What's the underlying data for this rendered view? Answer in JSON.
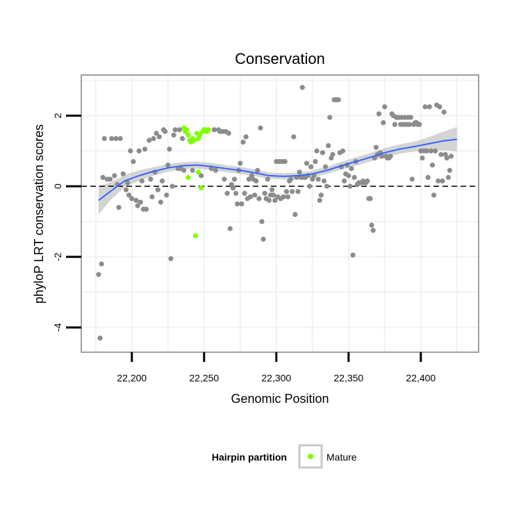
{
  "chart_data": {
    "type": "scatter",
    "title": "Conservation",
    "xlabel": "Genomic Position",
    "ylabel": "phyloP LRT conservation scores",
    "xlim": [
      22165,
      22440
    ],
    "ylim": [
      -4.7,
      3.15
    ],
    "x_ticks": [
      22200,
      22250,
      22300,
      22350,
      22400
    ],
    "x_tick_labels": [
      "22,200",
      "22,250",
      "22,300",
      "22,350",
      "22,400"
    ],
    "y_ticks": [
      -4,
      -2,
      0,
      2
    ],
    "y_tick_labels": [
      "-4",
      "-2",
      "0",
      "2"
    ],
    "grid": true,
    "reference_line": {
      "y": 0,
      "style": "dashed"
    },
    "legend": {
      "title": "Hairpin partition",
      "position": "bottom",
      "entries": [
        {
          "label": "Mature",
          "color": "#7fff00"
        }
      ]
    },
    "colors": {
      "other_points": "#8c8c8c",
      "mature_points": "#7fff00",
      "smooth_line": "#3366ff",
      "smooth_band": "#cccccc"
    },
    "series": [
      {
        "values": [
          [
            22177,
            -2.5
          ],
          [
            22178,
            -4.3
          ],
          [
            22179,
            -2.2
          ],
          [
            22180,
            0.25
          ],
          [
            22181,
            1.35
          ],
          [
            22183,
            0.2
          ],
          [
            22185,
            0.2
          ],
          [
            22186,
            1.35
          ],
          [
            22188,
            0.3
          ],
          [
            22189,
            1.35
          ],
          [
            22190,
            0.05
          ],
          [
            22191,
            -0.6
          ],
          [
            22192,
            1.35
          ],
          [
            22194,
            0.35
          ],
          [
            22196,
            -0.1
          ],
          [
            22197,
            0.1
          ],
          [
            22198,
            -0.25
          ],
          [
            22199,
            1.0
          ],
          [
            22200,
            -0.35
          ],
          [
            22201,
            0.7
          ],
          [
            22203,
            -0.4
          ],
          [
            22204,
            -0.55
          ],
          [
            22205,
            1.0
          ],
          [
            22206,
            -0.45
          ],
          [
            22207,
            0.15
          ],
          [
            22208,
            -0.65
          ],
          [
            22209,
            1.05
          ],
          [
            22210,
            -0.65
          ],
          [
            22212,
            1.3
          ],
          [
            22213,
            0.2
          ],
          [
            22214,
            -0.3
          ],
          [
            22215,
            1.35
          ],
          [
            22216,
            0.4
          ],
          [
            22217,
            1.5
          ],
          [
            22218,
            -0.1
          ],
          [
            22219,
            1.4
          ],
          [
            22220,
            -0.45
          ],
          [
            22221,
            0.15
          ],
          [
            22222,
            1.6
          ],
          [
            22223,
            1.55
          ],
          [
            22224,
            -0.25
          ],
          [
            22225,
            0.6
          ],
          [
            22226,
            1.05
          ],
          [
            22227,
            -2.05
          ],
          [
            22228,
            0.0
          ],
          [
            22229,
            1.45
          ],
          [
            22230,
            1.6
          ],
          [
            22232,
            0.5
          ],
          [
            22233,
            1.6
          ],
          [
            22234,
            0.5
          ],
          [
            22235,
            1.35
          ],
          [
            22236,
            0.45
          ],
          [
            22242,
            0.45
          ],
          [
            22248,
            0.3
          ],
          [
            22255,
            0.5
          ],
          [
            22257,
            1.6
          ],
          [
            22258,
            0.45
          ],
          [
            22260,
            1.6
          ],
          [
            22261,
            1.55
          ],
          [
            22263,
            1.55
          ],
          [
            22264,
            0.2
          ],
          [
            22265,
            1.55
          ],
          [
            22266,
            -0.2
          ],
          [
            22267,
            1.5
          ],
          [
            22268,
            -1.2
          ],
          [
            22269,
            0.05
          ],
          [
            22270,
            -0.05
          ],
          [
            22271,
            0.2
          ],
          [
            22272,
            -0.2
          ],
          [
            22273,
            -0.5
          ],
          [
            22274,
            0.45
          ],
          [
            22275,
            0.65
          ],
          [
            22276,
            -0.5
          ],
          [
            22277,
            1.25
          ],
          [
            22278,
            -0.2
          ],
          [
            22279,
            1.4
          ],
          [
            22280,
            -0.35
          ],
          [
            22281,
            0.2
          ],
          [
            22282,
            -0.3
          ],
          [
            22283,
            0.3
          ],
          [
            22284,
            0.2
          ],
          [
            22285,
            -0.25
          ],
          [
            22286,
            0.15
          ],
          [
            22287,
            0.45
          ],
          [
            22288,
            -0.35
          ],
          [
            22289,
            1.65
          ],
          [
            22290,
            -1.0
          ],
          [
            22291,
            -1.5
          ],
          [
            22292,
            -0.2
          ],
          [
            22293,
            -0.35
          ],
          [
            22294,
            0.2
          ],
          [
            22295,
            -0.4
          ],
          [
            22296,
            -0.25
          ],
          [
            22297,
            -0.1
          ],
          [
            22298,
            -0.25
          ],
          [
            22299,
            -0.4
          ],
          [
            22300,
            0.7
          ],
          [
            22301,
            -0.3
          ],
          [
            22302,
            0.7
          ],
          [
            22303,
            -0.35
          ],
          [
            22304,
            0.7
          ],
          [
            22305,
            -0.3
          ],
          [
            22306,
            0.7
          ],
          [
            22307,
            -0.15
          ],
          [
            22308,
            -0.3
          ],
          [
            22309,
            0.15
          ],
          [
            22310,
            0.2
          ],
          [
            22311,
            -0.15
          ],
          [
            22312,
            1.4
          ],
          [
            22313,
            -0.8
          ],
          [
            22314,
            0.25
          ],
          [
            22315,
            -0.15
          ],
          [
            22316,
            0.4
          ],
          [
            22317,
            0.25
          ],
          [
            22318,
            2.8
          ],
          [
            22319,
            0.25
          ],
          [
            22320,
            0.25
          ],
          [
            22321,
            0.65
          ],
          [
            22322,
            0.3
          ],
          [
            22323,
            0.0
          ],
          [
            22324,
            0.55
          ],
          [
            22325,
            0.2
          ],
          [
            22326,
            0.3
          ],
          [
            22327,
            0.7
          ],
          [
            22328,
            1.0
          ],
          [
            22329,
            0.2
          ],
          [
            22330,
            -0.4
          ],
          [
            22331,
            -0.25
          ],
          [
            22332,
            0.95
          ],
          [
            22333,
            0.15
          ],
          [
            22334,
            0.55
          ],
          [
            22335,
            0.0
          ],
          [
            22336,
            1.15
          ],
          [
            22337,
            1.95
          ],
          [
            22338,
            0.8
          ],
          [
            22339,
            0.9
          ],
          [
            22340,
            2.45
          ],
          [
            22341,
            2.45
          ],
          [
            22342,
            2.45
          ],
          [
            22343,
            2.45
          ],
          [
            22344,
            0.95
          ],
          [
            22345,
            0.55
          ],
          [
            22346,
            1.0
          ],
          [
            22347,
            0.15
          ],
          [
            22348,
            0.35
          ],
          [
            22349,
            0.6
          ],
          [
            22350,
            0.3
          ],
          [
            22351,
            0.0
          ],
          [
            22352,
            0.5
          ],
          [
            22353,
            -1.95
          ],
          [
            22354,
            0.25
          ],
          [
            22355,
            0.7
          ],
          [
            22356,
            0.05
          ],
          [
            22357,
            0.1
          ],
          [
            22358,
            0.1
          ],
          [
            22359,
            0.1
          ],
          [
            22360,
            0.15
          ],
          [
            22361,
            0.1
          ],
          [
            22362,
            0.1
          ],
          [
            22363,
            0.15
          ],
          [
            22364,
            -0.35
          ],
          [
            22365,
            -0.35
          ],
          [
            22366,
            -1.1
          ],
          [
            22367,
            -1.25
          ],
          [
            22368,
            0.8
          ],
          [
            22369,
            1.1
          ],
          [
            22370,
            0.9
          ],
          [
            22371,
            2.05
          ],
          [
            22372,
            0.95
          ],
          [
            22373,
            0.85
          ],
          [
            22374,
            1.8
          ],
          [
            22375,
            2.25
          ],
          [
            22376,
            0.85
          ],
          [
            22377,
            0.8
          ],
          [
            22378,
            0.8
          ],
          [
            22379,
            0.85
          ],
          [
            22380,
            2.05
          ],
          [
            22381,
            2.0
          ],
          [
            22382,
            1.75
          ],
          [
            22383,
            1.95
          ],
          [
            22384,
            1.95
          ],
          [
            22385,
            1.95
          ],
          [
            22386,
            1.75
          ],
          [
            22387,
            1.95
          ],
          [
            22388,
            1.75
          ],
          [
            22389,
            1.95
          ],
          [
            22390,
            1.75
          ],
          [
            22391,
            1.95
          ],
          [
            22392,
            1.75
          ],
          [
            22393,
            1.95
          ],
          [
            22394,
            0.2
          ],
          [
            22395,
            1.75
          ],
          [
            22396,
            1.8
          ],
          [
            22397,
            1.8
          ],
          [
            22398,
            1.75
          ],
          [
            22399,
            1.75
          ],
          [
            22400,
            1.0
          ],
          [
            22401,
            0.8
          ],
          [
            22402,
            1.0
          ],
          [
            22403,
            2.25
          ],
          [
            22404,
            1.0
          ],
          [
            22405,
            0.25
          ],
          [
            22406,
            2.25
          ],
          [
            22407,
            1.0
          ],
          [
            22408,
            0.6
          ],
          [
            22409,
            -0.25
          ],
          [
            22410,
            1.0
          ],
          [
            22411,
            2.3
          ],
          [
            22412,
            0.15
          ],
          [
            22413,
            2.25
          ],
          [
            22414,
            0.9
          ],
          [
            22415,
            0.15
          ],
          [
            22416,
            2.1
          ],
          [
            22417,
            0.9
          ],
          [
            22418,
            0.8
          ],
          [
            22419,
            0.25
          ],
          [
            22420,
            0.45
          ],
          [
            22421,
            0.85
          ]
        ]
      },
      {
        "name": "Mature",
        "values": [
          [
            22236,
            1.65
          ],
          [
            22237,
            1.55
          ],
          [
            22238,
            1.6
          ],
          [
            22239,
            1.45
          ],
          [
            22239,
            0.25
          ],
          [
            22240,
            1.3
          ],
          [
            22241,
            1.25
          ],
          [
            22242,
            1.35
          ],
          [
            22243,
            1.3
          ],
          [
            22244,
            -1.4
          ],
          [
            22245,
            1.5
          ],
          [
            22246,
            1.35
          ],
          [
            22246,
            0.4
          ],
          [
            22247,
            1.45
          ],
          [
            22248,
            -0.05
          ],
          [
            22249,
            1.55
          ],
          [
            22250,
            1.6
          ],
          [
            22251,
            1.6
          ],
          [
            22252,
            1.55
          ],
          [
            22253,
            1.6
          ]
        ]
      }
    ],
    "smooth": {
      "line": [
        [
          22177,
          -0.4
        ],
        [
          22185,
          -0.15
        ],
        [
          22195,
          0.15
        ],
        [
          22205,
          0.3
        ],
        [
          22215,
          0.42
        ],
        [
          22225,
          0.52
        ],
        [
          22235,
          0.58
        ],
        [
          22245,
          0.6
        ],
        [
          22255,
          0.56
        ],
        [
          22265,
          0.5
        ],
        [
          22275,
          0.45
        ],
        [
          22285,
          0.38
        ],
        [
          22295,
          0.3
        ],
        [
          22305,
          0.28
        ],
        [
          22315,
          0.3
        ],
        [
          22325,
          0.35
        ],
        [
          22335,
          0.45
        ],
        [
          22345,
          0.58
        ],
        [
          22355,
          0.7
        ],
        [
          22365,
          0.82
        ],
        [
          22375,
          0.95
        ],
        [
          22385,
          1.05
        ],
        [
          22395,
          1.12
        ],
        [
          22405,
          1.2
        ],
        [
          22415,
          1.28
        ],
        [
          22425,
          1.33
        ]
      ],
      "lower": [
        [
          22177,
          -0.8
        ],
        [
          22185,
          -0.4
        ],
        [
          22195,
          -0.02
        ],
        [
          22205,
          0.15
        ],
        [
          22215,
          0.3
        ],
        [
          22225,
          0.41
        ],
        [
          22235,
          0.48
        ],
        [
          22245,
          0.5
        ],
        [
          22255,
          0.46
        ],
        [
          22265,
          0.4
        ],
        [
          22275,
          0.35
        ],
        [
          22285,
          0.28
        ],
        [
          22295,
          0.21
        ],
        [
          22305,
          0.19
        ],
        [
          22315,
          0.21
        ],
        [
          22325,
          0.26
        ],
        [
          22335,
          0.35
        ],
        [
          22345,
          0.47
        ],
        [
          22355,
          0.58
        ],
        [
          22365,
          0.7
        ],
        [
          22375,
          0.82
        ],
        [
          22385,
          0.92
        ],
        [
          22395,
          0.98
        ],
        [
          22405,
          1.02
        ],
        [
          22415,
          1.02
        ],
        [
          22425,
          0.98
        ]
      ],
      "upper": [
        [
          22177,
          0.0
        ],
        [
          22185,
          0.1
        ],
        [
          22195,
          0.32
        ],
        [
          22205,
          0.45
        ],
        [
          22215,
          0.54
        ],
        [
          22225,
          0.63
        ],
        [
          22235,
          0.68
        ],
        [
          22245,
          0.7
        ],
        [
          22255,
          0.66
        ],
        [
          22265,
          0.6
        ],
        [
          22275,
          0.55
        ],
        [
          22285,
          0.48
        ],
        [
          22295,
          0.39
        ],
        [
          22305,
          0.37
        ],
        [
          22315,
          0.39
        ],
        [
          22325,
          0.44
        ],
        [
          22335,
          0.55
        ],
        [
          22345,
          0.69
        ],
        [
          22355,
          0.82
        ],
        [
          22365,
          0.94
        ],
        [
          22375,
          1.08
        ],
        [
          22385,
          1.18
        ],
        [
          22395,
          1.26
        ],
        [
          22405,
          1.38
        ],
        [
          22415,
          1.54
        ],
        [
          22425,
          1.68
        ]
      ]
    }
  }
}
